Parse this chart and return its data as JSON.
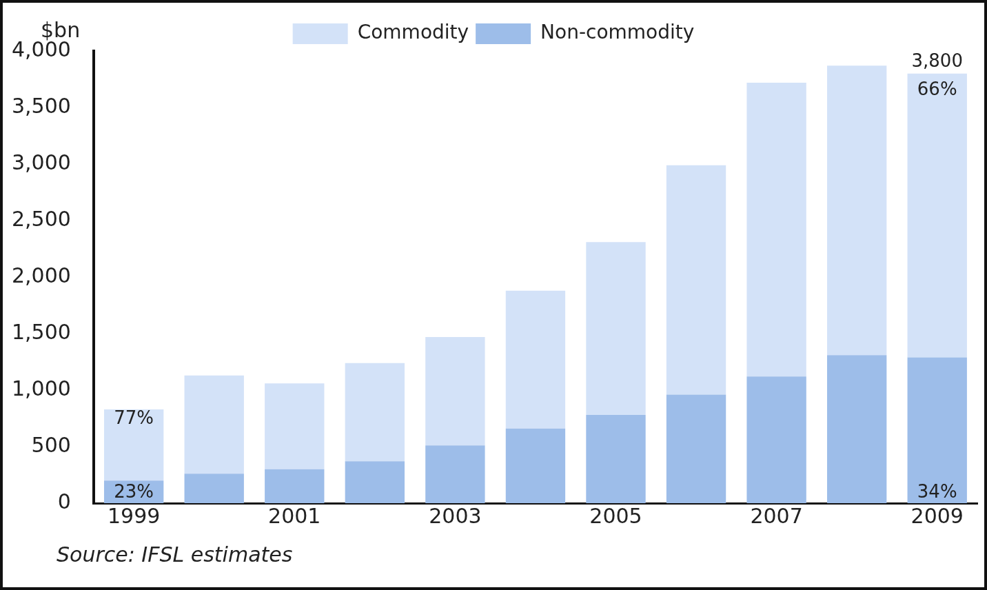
{
  "chart_data": {
    "type": "bar",
    "stacked": true,
    "ylabel": "$bn",
    "categories": [
      "1999",
      null,
      "2001",
      null,
      "2003",
      null,
      "2005",
      null,
      "2007",
      null,
      "2009"
    ],
    "series": [
      {
        "name": "Non-commodity",
        "color": "#9dbde9",
        "values": [
          200,
          260,
          300,
          370,
          510,
          660,
          780,
          960,
          1120,
          1310,
          1290
        ]
      },
      {
        "name": "Commodity",
        "color": "#d3e2f8",
        "values": [
          630,
          870,
          760,
          870,
          960,
          1220,
          1530,
          2030,
          2600,
          2560,
          2510
        ]
      }
    ],
    "ylim": [
      0,
      4000
    ],
    "yticks": [
      0,
      500,
      {
        "value": 1000,
        "label": "1,000"
      },
      {
        "value": 1500,
        "label": "1,500"
      },
      {
        "value": 2000,
        "label": "2,000"
      },
      {
        "value": 2500,
        "label": "2,500"
      },
      {
        "value": 3000,
        "label": "3,000"
      },
      {
        "value": 3500,
        "label": "3,500"
      },
      {
        "value": 4000,
        "label": "4,000"
      }
    ],
    "grid": false,
    "legend": "top",
    "annotations": [
      "77%",
      "23%",
      "3,800",
      "66%",
      "34%",
      "Source: IFSL estimates"
    ]
  }
}
